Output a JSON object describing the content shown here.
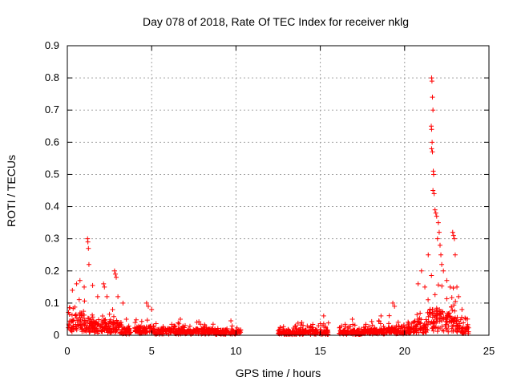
{
  "chart_data": {
    "type": "scatter",
    "title": "Day 078 of 2018, Rate Of TEC Index for receiver nklg",
    "xlabel": "GPS time / hours",
    "ylabel": "ROTI / TECUs",
    "xlim": [
      0,
      25
    ],
    "ylim": [
      0,
      0.9
    ],
    "xticks": [
      "0",
      "5",
      "10",
      "15",
      "20",
      "25"
    ],
    "yticks": [
      "0",
      "0.1",
      "0.2",
      "0.3",
      "0.4",
      "0.5",
      "0.6",
      "0.7",
      "0.8",
      "0.9"
    ],
    "grid": true,
    "marker": "+",
    "color": "#ff0000",
    "series": [
      {
        "name": "ROTI",
        "segments": [
          {
            "x_start": 0.05,
            "x_end": 0.5,
            "base": 0.035,
            "spread": 0.06
          },
          {
            "x_start": 0.5,
            "x_end": 1.0,
            "base": 0.05,
            "spread": 0.08
          },
          {
            "x_start": 1.0,
            "x_end": 1.6,
            "base": 0.04,
            "spread": 0.07
          },
          {
            "x_start": 1.6,
            "x_end": 2.1,
            "base": 0.03,
            "spread": 0.05
          },
          {
            "x_start": 2.1,
            "x_end": 2.7,
            "base": 0.035,
            "spread": 0.06
          },
          {
            "x_start": 2.7,
            "x_end": 3.2,
            "base": 0.03,
            "spread": 0.05
          },
          {
            "x_start": 3.2,
            "x_end": 3.8,
            "base": 0.015,
            "spread": 0.02
          },
          {
            "x_start": 4.0,
            "x_end": 5.2,
            "base": 0.02,
            "spread": 0.035
          },
          {
            "x_start": 5.2,
            "x_end": 7.0,
            "base": 0.015,
            "spread": 0.025
          },
          {
            "x_start": 7.0,
            "x_end": 8.8,
            "base": 0.015,
            "spread": 0.025
          },
          {
            "x_start": 8.8,
            "x_end": 10.3,
            "base": 0.012,
            "spread": 0.025
          },
          {
            "x_start": 12.5,
            "x_end": 13.4,
            "base": 0.01,
            "spread": 0.02
          },
          {
            "x_start": 13.4,
            "x_end": 14.4,
            "base": 0.012,
            "spread": 0.025
          },
          {
            "x_start": 14.4,
            "x_end": 15.5,
            "base": 0.012,
            "spread": 0.025
          },
          {
            "x_start": 16.1,
            "x_end": 17.5,
            "base": 0.012,
            "spread": 0.025
          },
          {
            "x_start": 17.5,
            "x_end": 19.0,
            "base": 0.015,
            "spread": 0.03
          },
          {
            "x_start": 19.0,
            "x_end": 20.5,
            "base": 0.02,
            "spread": 0.035
          },
          {
            "x_start": 20.5,
            "x_end": 21.3,
            "base": 0.03,
            "spread": 0.06
          },
          {
            "x_start": 21.3,
            "x_end": 22.3,
            "base": 0.06,
            "spread": 0.15
          },
          {
            "x_start": 22.3,
            "x_end": 22.8,
            "base": 0.05,
            "spread": 0.1
          },
          {
            "x_start": 22.8,
            "x_end": 23.3,
            "base": 0.04,
            "spread": 0.1
          },
          {
            "x_start": 23.3,
            "x_end": 23.8,
            "base": 0.02,
            "spread": 0.04
          }
        ],
        "peaks": [
          [
            0.3,
            0.14
          ],
          [
            0.55,
            0.16
          ],
          [
            0.75,
            0.17
          ],
          [
            1.0,
            0.15
          ],
          [
            1.2,
            0.3
          ],
          [
            1.22,
            0.29
          ],
          [
            1.25,
            0.27
          ],
          [
            1.28,
            0.22
          ],
          [
            1.5,
            0.155
          ],
          [
            1.8,
            0.12
          ],
          [
            2.15,
            0.16
          ],
          [
            2.2,
            0.15
          ],
          [
            2.35,
            0.12
          ],
          [
            2.8,
            0.2
          ],
          [
            2.85,
            0.19
          ],
          [
            2.9,
            0.18
          ],
          [
            3.0,
            0.12
          ],
          [
            3.3,
            0.1
          ],
          [
            3.5,
            0.05
          ],
          [
            4.7,
            0.1
          ],
          [
            4.8,
            0.09
          ],
          [
            5.0,
            0.08
          ],
          [
            6.7,
            0.05
          ],
          [
            9.7,
            0.045
          ],
          [
            13.9,
            0.04
          ],
          [
            15.2,
            0.06
          ],
          [
            16.9,
            0.05
          ],
          [
            18.6,
            0.06
          ],
          [
            19.3,
            0.1
          ],
          [
            19.4,
            0.09
          ],
          [
            20.8,
            0.16
          ],
          [
            21.0,
            0.2
          ],
          [
            21.2,
            0.15
          ],
          [
            21.4,
            0.25
          ],
          [
            21.6,
            0.8
          ],
          [
            21.62,
            0.79
          ],
          [
            21.65,
            0.74
          ],
          [
            21.68,
            0.7
          ],
          [
            21.58,
            0.65
          ],
          [
            21.6,
            0.64
          ],
          [
            21.63,
            0.6
          ],
          [
            21.6,
            0.58
          ],
          [
            21.65,
            0.57
          ],
          [
            21.7,
            0.51
          ],
          [
            21.72,
            0.5
          ],
          [
            21.68,
            0.45
          ],
          [
            21.75,
            0.44
          ],
          [
            21.8,
            0.39
          ],
          [
            21.85,
            0.38
          ],
          [
            21.9,
            0.37
          ],
          [
            22.0,
            0.35
          ],
          [
            22.05,
            0.32
          ],
          [
            21.95,
            0.3
          ],
          [
            22.1,
            0.28
          ],
          [
            22.15,
            0.25
          ],
          [
            22.2,
            0.22
          ],
          [
            22.3,
            0.2
          ],
          [
            22.5,
            0.17
          ],
          [
            22.7,
            0.15
          ],
          [
            22.85,
            0.32
          ],
          [
            22.9,
            0.31
          ],
          [
            22.95,
            0.3
          ],
          [
            23.0,
            0.25
          ],
          [
            23.1,
            0.15
          ],
          [
            23.2,
            0.12
          ],
          [
            23.4,
            0.08
          ]
        ]
      }
    ]
  }
}
